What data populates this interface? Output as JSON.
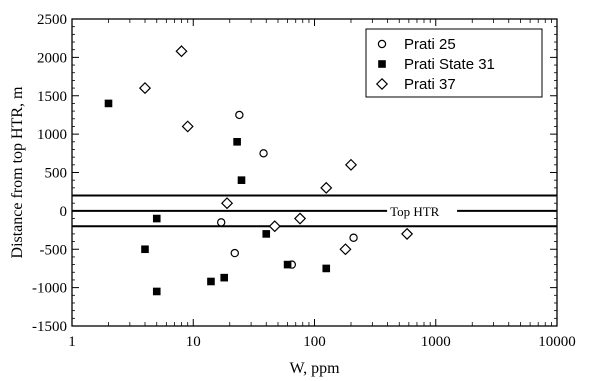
{
  "chart_data": {
    "type": "scatter",
    "title": "",
    "xlabel": "W,   ppm",
    "ylabel": "Distance from top HTR, m",
    "x_scale": "log",
    "xlim": [
      1,
      10000
    ],
    "ylim": [
      -1500,
      2500
    ],
    "x_ticks": [
      1,
      10,
      100,
      1000,
      10000
    ],
    "x_tick_labels": [
      "1",
      "10",
      "100",
      "1000",
      "10000"
    ],
    "y_ticks": [
      -1500,
      -1000,
      -500,
      0,
      500,
      1000,
      1500,
      2000,
      2500
    ],
    "y_tick_labels": [
      "-1500",
      "-1000",
      "-500",
      "0",
      "500",
      "1000",
      "1500",
      "2000",
      "2500"
    ],
    "grid": false,
    "legend_position": "top-right",
    "series": [
      {
        "name": "Prati 25",
        "marker": "open-circle",
        "points": [
          {
            "x": 17,
            "y": -150
          },
          {
            "x": 22,
            "y": -550
          },
          {
            "x": 24,
            "y": 1250
          },
          {
            "x": 38,
            "y": 750
          },
          {
            "x": 65,
            "y": -700
          },
          {
            "x": 210,
            "y": -350
          }
        ]
      },
      {
        "name": "Prati State 31",
        "marker": "filled-square",
        "points": [
          {
            "x": 2,
            "y": 1400
          },
          {
            "x": 4,
            "y": -500
          },
          {
            "x": 5,
            "y": -100
          },
          {
            "x": 5,
            "y": -1050
          },
          {
            "x": 14,
            "y": -920
          },
          {
            "x": 18,
            "y": -870
          },
          {
            "x": 23,
            "y": 900
          },
          {
            "x": 25,
            "y": 400
          },
          {
            "x": 40,
            "y": -300
          },
          {
            "x": 60,
            "y": -700
          },
          {
            "x": 125,
            "y": -750
          }
        ]
      },
      {
        "name": "Prati 37",
        "marker": "open-diamond",
        "points": [
          {
            "x": 4,
            "y": 1600
          },
          {
            "x": 8,
            "y": 2080
          },
          {
            "x": 9,
            "y": 1100
          },
          {
            "x": 19,
            "y": 100
          },
          {
            "x": 47,
            "y": -200
          },
          {
            "x": 76,
            "y": -100
          },
          {
            "x": 125,
            "y": 300
          },
          {
            "x": 180,
            "y": -500
          },
          {
            "x": 200,
            "y": 600
          },
          {
            "x": 580,
            "y": -300
          }
        ]
      }
    ],
    "reference_lines": [
      {
        "y": 200
      },
      {
        "y": 0,
        "label": "Top HTR"
      },
      {
        "y": -200
      }
    ]
  }
}
